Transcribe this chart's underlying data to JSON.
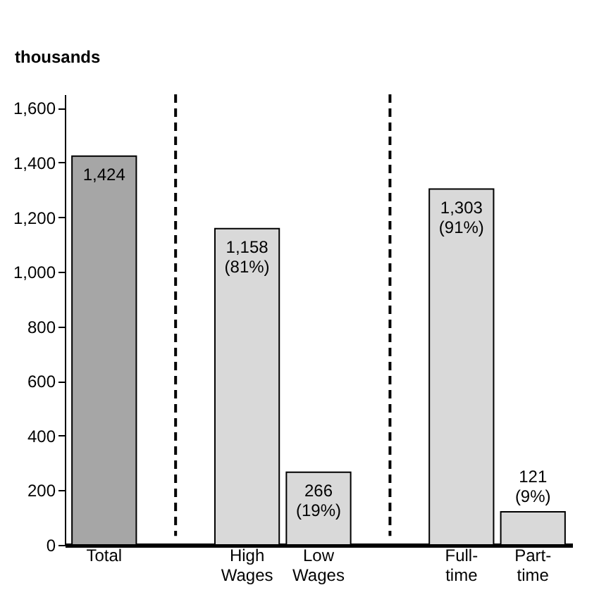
{
  "chart_data": {
    "type": "bar",
    "ylabel": "thousands",
    "categories": [
      "Total",
      null,
      "High Wages",
      "Low Wages",
      null,
      "Full-time",
      "Part-time"
    ],
    "values": [
      1424,
      null,
      1158,
      266,
      null,
      1303,
      121
    ],
    "colors": [
      "#a6a6a6",
      null,
      "#d9d9d9",
      "#d9d9d9",
      null,
      "#d9d9d9",
      "#d9d9d9"
    ],
    "value_labels": [
      "1,424",
      null,
      "1,158\n(81%)",
      "266\n(19%)",
      null,
      "1,303\n(91%)",
      "121\n(9%)"
    ],
    "ylim": [
      0,
      1650
    ],
    "yticks": [
      0,
      200,
      400,
      600,
      800,
      {
        "value": 1000,
        "label": "1,000"
      },
      {
        "value": 1200,
        "label": "1,200"
      },
      {
        "value": 1400,
        "label": "1,400"
      },
      {
        "value": 1600,
        "label": "1,600"
      }
    ]
  }
}
